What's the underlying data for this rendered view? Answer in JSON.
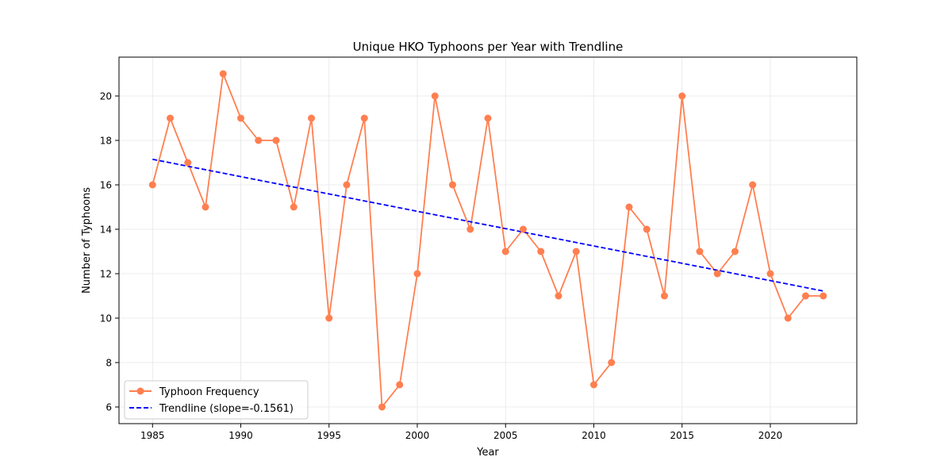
{
  "chart_data": {
    "type": "line",
    "title": "Unique HKO Typhoons per Year with Trendline",
    "xlabel": "Year",
    "ylabel": "Number of Typhoons",
    "xlim": [
      1983.1,
      2024.9
    ],
    "ylim": [
      5.25,
      21.75
    ],
    "x_ticks": [
      1985,
      1990,
      1995,
      2000,
      2005,
      2010,
      2015,
      2020
    ],
    "y_ticks": [
      6,
      8,
      10,
      12,
      14,
      16,
      18,
      20
    ],
    "grid": true,
    "legend_position": "lower-left",
    "x": [
      1985,
      1986,
      1987,
      1988,
      1989,
      1990,
      1991,
      1992,
      1993,
      1994,
      1995,
      1996,
      1997,
      1998,
      1999,
      2000,
      2001,
      2002,
      2003,
      2004,
      2005,
      2006,
      2007,
      2008,
      2009,
      2010,
      2011,
      2012,
      2013,
      2014,
      2015,
      2016,
      2017,
      2018,
      2019,
      2020,
      2021,
      2022,
      2023
    ],
    "series": [
      {
        "name": "Typhoon Frequency",
        "color": "#ff7f50",
        "style": "line-marker",
        "values": [
          16,
          19,
          17,
          15,
          21,
          19,
          18,
          18,
          15,
          19,
          10,
          16,
          19,
          6,
          7,
          12,
          20,
          16,
          14,
          19,
          13,
          14,
          13,
          11,
          13,
          7,
          8,
          15,
          14,
          11,
          20,
          13,
          12,
          13,
          16,
          12,
          10,
          11,
          11
        ]
      },
      {
        "name": "Trendline (slope=-0.1561)",
        "color": "#0000ff",
        "style": "dashed",
        "x": [
          1985,
          2023
        ],
        "values": [
          17.15,
          11.22
        ]
      }
    ]
  }
}
